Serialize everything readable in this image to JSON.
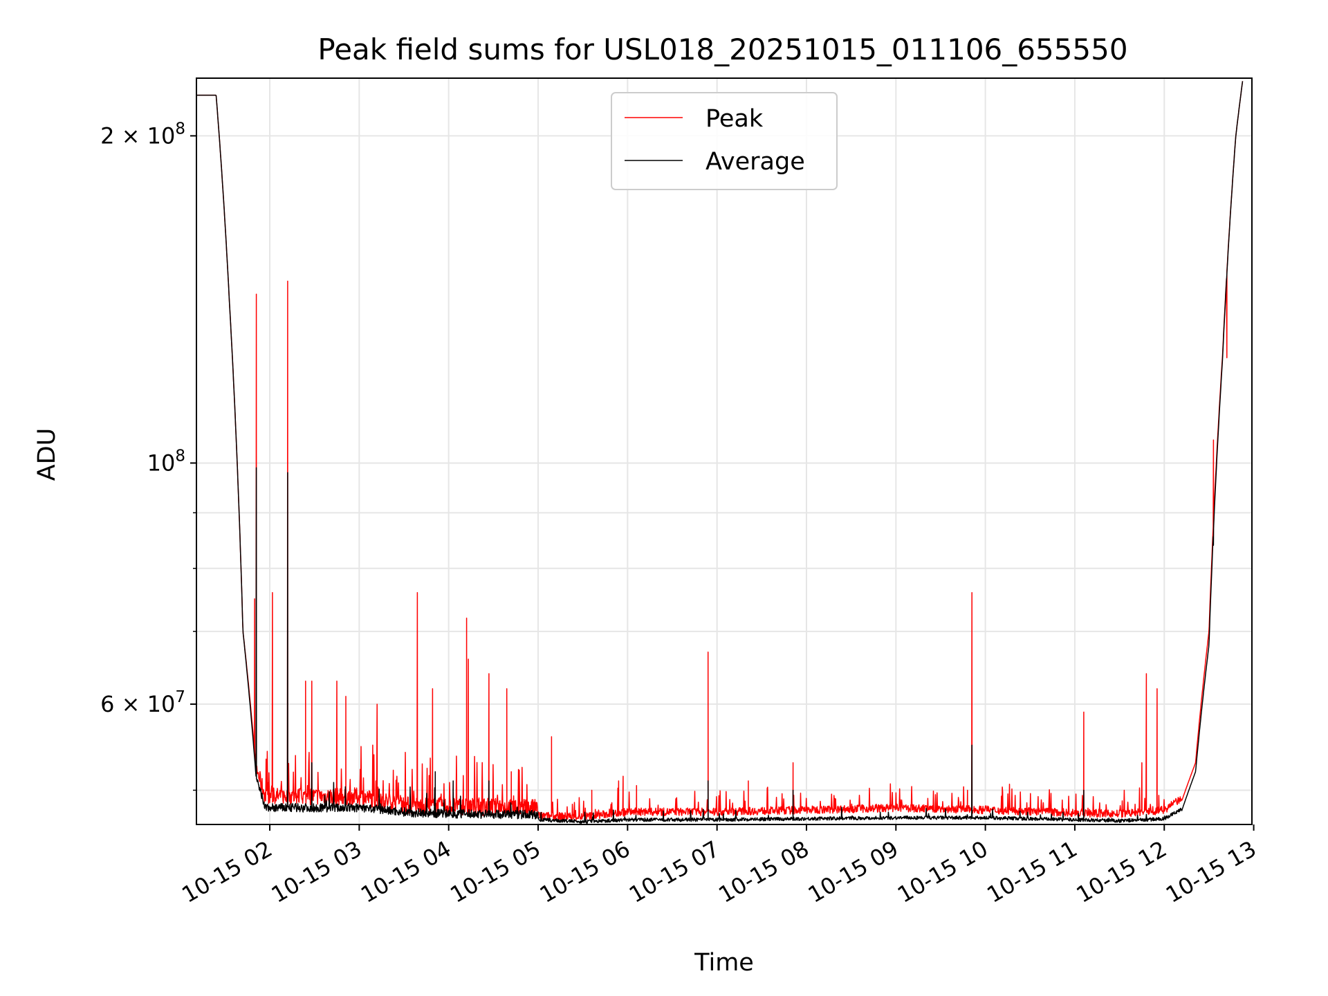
{
  "chart_data": {
    "type": "line",
    "title": "Peak field sums for USL018_20251015_011106_655550",
    "xlabel": "Time",
    "ylabel": "ADU",
    "yscale": "log",
    "xlim_hours": [
      1.18,
      12.98
    ],
    "ylim": [
      46500000,
      226000000
    ],
    "grid": true,
    "legend_position": "top-center",
    "x_ticks": [
      {
        "hour": 2,
        "label": "10-15 02"
      },
      {
        "hour": 3,
        "label": "10-15 03"
      },
      {
        "hour": 4,
        "label": "10-15 04"
      },
      {
        "hour": 5,
        "label": "10-15 05"
      },
      {
        "hour": 6,
        "label": "10-15 06"
      },
      {
        "hour": 7,
        "label": "10-15 07"
      },
      {
        "hour": 8,
        "label": "10-15 08"
      },
      {
        "hour": 9,
        "label": "10-15 09"
      },
      {
        "hour": 10,
        "label": "10-15 10"
      },
      {
        "hour": 11,
        "label": "10-15 11"
      },
      {
        "hour": 12,
        "label": "10-15 12"
      },
      {
        "hour": 13,
        "label": "10-15 13"
      }
    ],
    "y_major_ticks": [
      {
        "value": 60000000,
        "mantissa": "6",
        "times": "×",
        "base": "10",
        "exp": "7"
      },
      {
        "value": 100000000,
        "mantissa": "",
        "times": "",
        "base": "10",
        "exp": "8"
      },
      {
        "value": 200000000,
        "mantissa": "2",
        "times": "×",
        "base": "10",
        "exp": "8"
      }
    ],
    "y_minor_ticks": [
      50000000,
      70000000,
      80000000,
      90000000
    ],
    "series": [
      {
        "name": "Peak",
        "color": "#ff0000",
        "baseline": [
          [
            1.18,
            218
          ],
          [
            1.4,
            218
          ],
          [
            1.55,
            140
          ],
          [
            1.7,
            70
          ],
          [
            1.85,
            52
          ],
          [
            1.95,
            49
          ],
          [
            2.5,
            49
          ],
          [
            3.0,
            49
          ],
          [
            3.6,
            48
          ],
          [
            4.0,
            48
          ],
          [
            4.98,
            47.8
          ],
          [
            5.02,
            47.2
          ],
          [
            5.5,
            47.1
          ],
          [
            6.0,
            47.6
          ],
          [
            7.0,
            47.6
          ],
          [
            8.0,
            47.8
          ],
          [
            9.0,
            48.0
          ],
          [
            10.0,
            47.8
          ],
          [
            11.0,
            47.5
          ],
          [
            11.5,
            47.4
          ],
          [
            11.8,
            47.6
          ],
          [
            12.0,
            47.8
          ],
          [
            12.2,
            49
          ],
          [
            12.35,
            53
          ],
          [
            12.5,
            70
          ],
          [
            12.65,
            125
          ],
          [
            12.8,
            200
          ],
          [
            12.88,
            226
          ]
        ],
        "spikes": [
          [
            1.83,
            75
          ],
          [
            1.85,
            143
          ],
          [
            2.03,
            76
          ],
          [
            2.2,
            147
          ],
          [
            2.4,
            63
          ],
          [
            2.47,
            63
          ],
          [
            2.75,
            63
          ],
          [
            2.85,
            61
          ],
          [
            3.2,
            60
          ],
          [
            3.65,
            76
          ],
          [
            3.82,
            62
          ],
          [
            4.2,
            72
          ],
          [
            4.22,
            66
          ],
          [
            4.45,
            64
          ],
          [
            4.65,
            62
          ],
          [
            4.7,
            52
          ],
          [
            5.15,
            56
          ],
          [
            5.6,
            50
          ],
          [
            5.9,
            51
          ],
          [
            5.95,
            51.5
          ],
          [
            6.1,
            50.5
          ],
          [
            6.9,
            67
          ],
          [
            7.35,
            51
          ],
          [
            7.85,
            53
          ],
          [
            9.05,
            49
          ],
          [
            9.8,
            50
          ],
          [
            9.85,
            76
          ],
          [
            11.1,
            59
          ],
          [
            11.75,
            53
          ],
          [
            11.8,
            64
          ],
          [
            11.92,
            62
          ],
          [
            12.55,
            105
          ],
          [
            12.7,
            125
          ]
        ]
      },
      {
        "name": "Average",
        "color": "#000000",
        "baseline": [
          [
            1.18,
            218
          ],
          [
            1.4,
            218
          ],
          [
            1.55,
            140
          ],
          [
            1.7,
            70
          ],
          [
            1.85,
            51
          ],
          [
            1.95,
            48
          ],
          [
            2.5,
            48
          ],
          [
            3.0,
            48
          ],
          [
            3.6,
            47.5
          ],
          [
            4.0,
            47.4
          ],
          [
            4.98,
            47.3
          ],
          [
            5.02,
            46.9
          ],
          [
            5.5,
            46.7
          ],
          [
            6.0,
            46.9
          ],
          [
            7.0,
            46.9
          ],
          [
            8.0,
            47.0
          ],
          [
            9.0,
            47.1
          ],
          [
            10.0,
            47.1
          ],
          [
            11.0,
            46.9
          ],
          [
            11.5,
            46.8
          ],
          [
            11.8,
            46.9
          ],
          [
            12.0,
            47.0
          ],
          [
            12.2,
            48
          ],
          [
            12.35,
            52
          ],
          [
            12.5,
            68
          ],
          [
            12.65,
            124
          ],
          [
            12.8,
            200
          ],
          [
            12.88,
            226
          ]
        ],
        "spikes": [
          [
            1.85,
            99
          ],
          [
            2.2,
            98
          ],
          [
            2.47,
            53
          ],
          [
            3.85,
            52
          ],
          [
            4.05,
            51
          ],
          [
            4.45,
            51
          ],
          [
            6.9,
            51
          ],
          [
            7.85,
            50
          ],
          [
            9.85,
            55
          ],
          [
            11.1,
            50
          ],
          [
            12.55,
            84
          ]
        ]
      }
    ]
  }
}
